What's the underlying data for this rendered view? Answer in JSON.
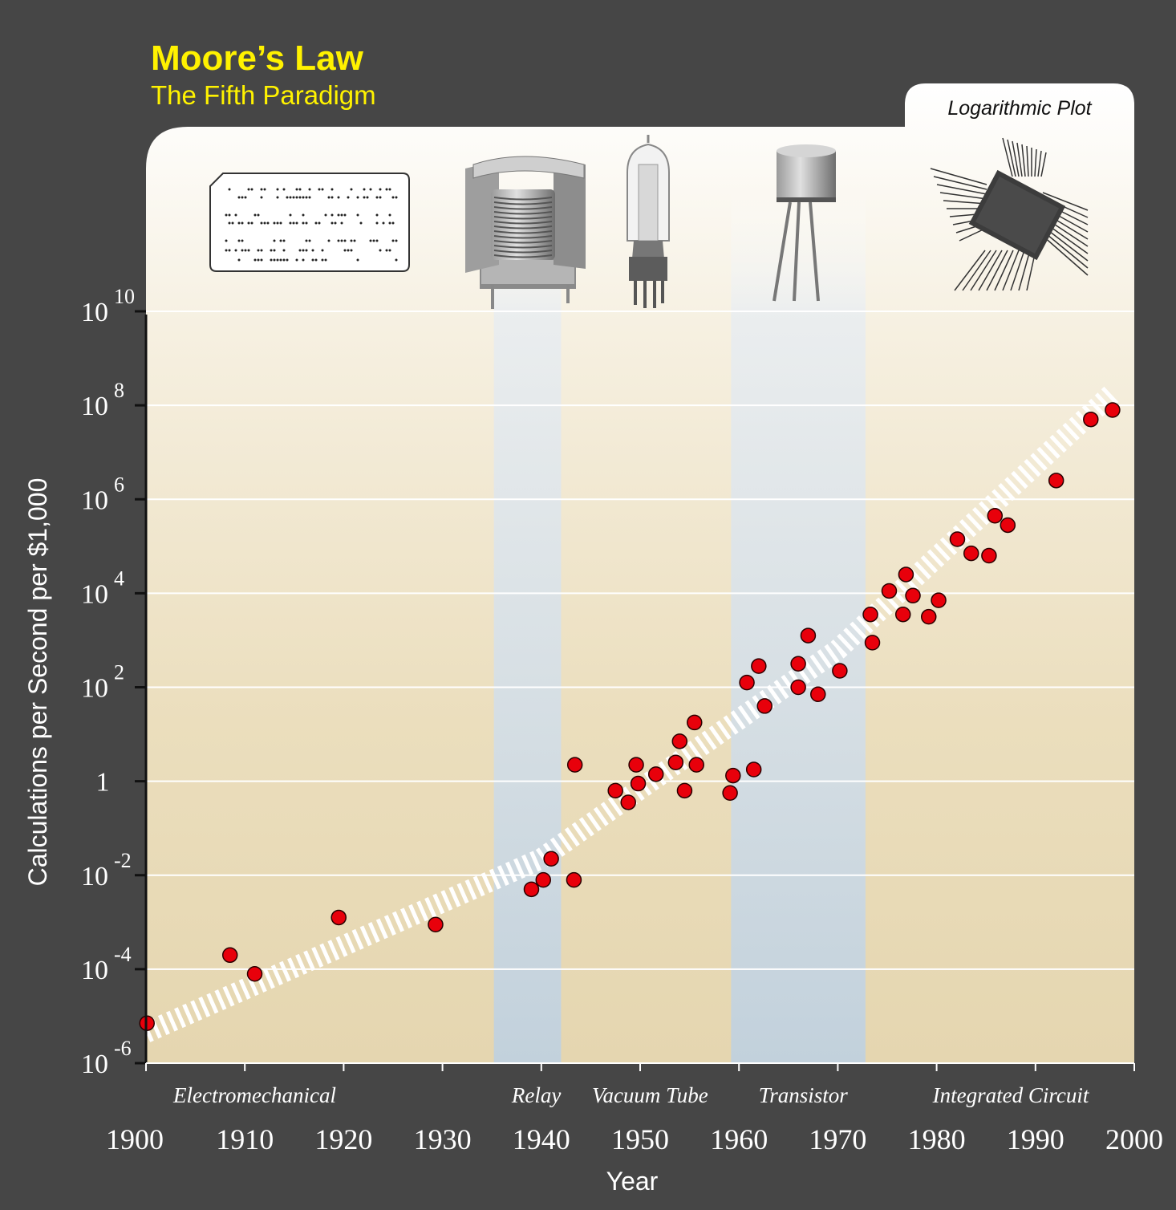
{
  "header": {
    "title": "Moore’s Law",
    "subtitle": "The Fifth Paradigm",
    "plot_note": "Logarithmic Plot"
  },
  "colors": {
    "background": "#464646",
    "title": "#fff200",
    "point_fill": "#e8000b",
    "paradigm_band": "#bfcfdc",
    "plot_top": "#fdfcf7",
    "plot_bottom": "#e6d8b3"
  },
  "icons": [
    "punch-card-icon",
    "relay-icon",
    "vacuum-tube-icon",
    "transistor-icon",
    "integrated-circuit-icon"
  ],
  "chart_data": {
    "type": "scatter",
    "title": "Moore’s Law",
    "subtitle": "The Fifth Paradigm",
    "xlabel": "Year",
    "ylabel": "Calculations per Second per $1,000",
    "scale": "log",
    "xlim": [
      1900,
      2000
    ],
    "ylim": [
      -6,
      10
    ],
    "x_ticks": [
      "1900",
      "1910",
      "1920",
      "1930",
      "1940",
      "1950",
      "1960",
      "1970",
      "1980",
      "1990",
      "2000"
    ],
    "y_ticks": [
      {
        "base": "10",
        "exp": "10",
        "value": 10
      },
      {
        "base": "10",
        "exp": "8",
        "value": 8
      },
      {
        "base": "10",
        "exp": "6",
        "value": 6
      },
      {
        "base": "10",
        "exp": "4",
        "value": 4
      },
      {
        "base": "10",
        "exp": "2",
        "value": 2
      },
      {
        "base": "1",
        "exp": "",
        "value": 0
      },
      {
        "base": "10",
        "exp": "-2",
        "value": -2
      },
      {
        "base": "10",
        "exp": "-4",
        "value": -4
      },
      {
        "base": "10",
        "exp": "-6",
        "value": -6
      }
    ],
    "grid": true,
    "paradigms": [
      {
        "label": "Electromechanical",
        "center": 1911
      },
      {
        "label": "Relay",
        "center": 1939.5
      },
      {
        "label": "Vacuum Tube",
        "center": 1951
      },
      {
        "label": "Transistor",
        "center": 1966.5
      },
      {
        "label": "Integrated Circuit",
        "center": 1987.5
      }
    ],
    "shaded_eras": [
      {
        "name": "Relay",
        "from": 1935.2,
        "to": 1942
      },
      {
        "name": "Transistor",
        "from": 1959.2,
        "to": 1972.8
      }
    ],
    "trend": {
      "points": [
        [
          1900,
          -5.35
        ],
        [
          1940,
          -1.65
        ],
        [
          1970,
          2.8
        ],
        [
          1998,
          8.3
        ]
      ]
    },
    "points": [
      [
        1900.1,
        -5.15
      ],
      [
        1908.5,
        -3.7
      ],
      [
        1911.0,
        -4.1
      ],
      [
        1919.5,
        -2.9
      ],
      [
        1929.3,
        -3.05
      ],
      [
        1939.0,
        -2.3
      ],
      [
        1940.2,
        -2.1
      ],
      [
        1941.0,
        -1.65
      ],
      [
        1943.3,
        -2.1
      ],
      [
        1943.4,
        0.35
      ],
      [
        1947.5,
        -0.2
      ],
      [
        1948.8,
        -0.45
      ],
      [
        1949.6,
        0.35
      ],
      [
        1949.8,
        -0.05
      ],
      [
        1951.6,
        0.15
      ],
      [
        1953.6,
        0.4
      ],
      [
        1954.0,
        0.85
      ],
      [
        1954.5,
        -0.2
      ],
      [
        1955.5,
        1.25
      ],
      [
        1955.7,
        0.35
      ],
      [
        1959.1,
        -0.25
      ],
      [
        1959.4,
        0.12
      ],
      [
        1960.8,
        2.1
      ],
      [
        1961.5,
        0.25
      ],
      [
        1962.0,
        2.45
      ],
      [
        1962.6,
        1.6
      ],
      [
        1966.0,
        2.5
      ],
      [
        1966.0,
        2.0
      ],
      [
        1967.0,
        3.1
      ],
      [
        1968.0,
        1.85
      ],
      [
        1970.2,
        2.35
      ],
      [
        1973.3,
        3.55
      ],
      [
        1973.5,
        2.95
      ],
      [
        1975.2,
        4.05
      ],
      [
        1976.6,
        3.55
      ],
      [
        1976.9,
        4.4
      ],
      [
        1977.6,
        3.95
      ],
      [
        1979.2,
        3.5
      ],
      [
        1980.2,
        3.85
      ],
      [
        1982.1,
        5.15
      ],
      [
        1983.5,
        4.85
      ],
      [
        1985.3,
        4.8
      ],
      [
        1985.9,
        5.65
      ],
      [
        1987.2,
        5.45
      ],
      [
        1992.1,
        6.4
      ],
      [
        1995.6,
        7.7
      ],
      [
        1997.8,
        7.9
      ]
    ]
  }
}
